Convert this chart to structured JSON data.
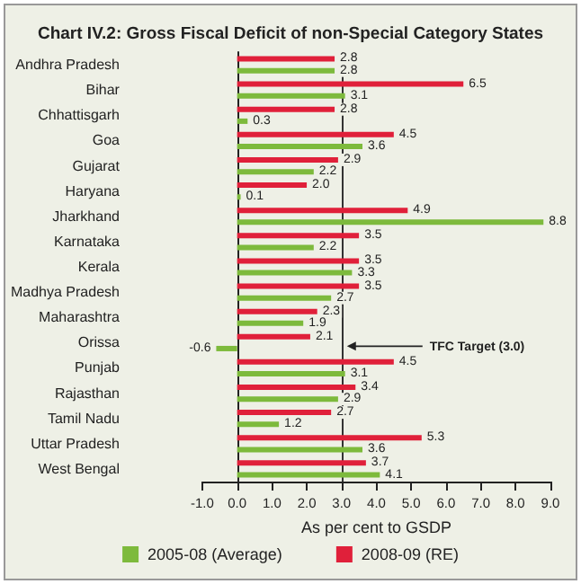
{
  "chart_data": {
    "type": "bar",
    "orientation": "horizontal",
    "title": "Chart IV.2: Gross Fiscal Deficit of non-Special Category States",
    "xlabel": "As per cent to GSDP",
    "categories": [
      "Andhra Pradesh",
      "Bihar",
      "Chhattisgarh",
      "Goa",
      "Gujarat",
      "Haryana",
      "Jharkhand",
      "Karnataka",
      "Kerala",
      "Madhya Pradesh",
      "Maharashtra",
      "Orissa",
      "Punjab",
      "Rajasthan",
      "Tamil Nadu",
      "Uttar Pradesh",
      "West Bengal"
    ],
    "series": [
      {
        "name": "2008-09 (RE)",
        "color": "#e0203a",
        "values": [
          2.8,
          6.5,
          2.8,
          4.5,
          2.9,
          2.0,
          4.9,
          3.5,
          3.5,
          3.5,
          2.3,
          2.1,
          4.5,
          3.4,
          2.7,
          5.3,
          3.7
        ],
        "value_labels": [
          "2.8",
          "6.5",
          "2.8",
          "4.5",
          "2.9",
          "2.0",
          "4.9",
          "3.5",
          "3.5",
          "3.5",
          "2.3",
          "2.1",
          "4.5",
          "3.4",
          "2.7",
          "5.3",
          "3.7"
        ]
      },
      {
        "name": "2005-08 (Average)",
        "color": "#7dba3c",
        "values": [
          2.8,
          3.1,
          0.3,
          3.6,
          2.2,
          0.1,
          8.8,
          2.2,
          3.3,
          2.7,
          1.9,
          -0.6,
          3.1,
          2.9,
          1.2,
          3.6,
          4.1
        ],
        "value_labels": [
          "2.8",
          "3.1",
          "0.3",
          "3.6",
          "2.2",
          "0.1",
          "8.8",
          "2.2",
          "3.3",
          "2.7",
          "1.9",
          "-0.6",
          "3.1",
          "2.9",
          "1.2",
          "3.6",
          "4.1"
        ]
      }
    ],
    "xlim": [
      -1,
      9
    ],
    "xticks": [
      {
        "value": -1,
        "label": "-1.0"
      },
      {
        "value": 0,
        "label": "0.0"
      },
      {
        "value": 1,
        "label": "1.0"
      },
      {
        "value": 2,
        "label": "2.0"
      },
      {
        "value": 3,
        "label": "3.0"
      },
      {
        "value": 4,
        "label": "4.0"
      },
      {
        "value": 5,
        "label": "5.0"
      },
      {
        "value": 6,
        "label": "6.0"
      },
      {
        "value": 7,
        "label": "7.0"
      },
      {
        "value": 8,
        "label": "8.0"
      },
      {
        "value": 9,
        "label": "9.0"
      }
    ],
    "ref_lines": [
      {
        "axis": "x",
        "value": 3,
        "label": "TFC Target (3.0)",
        "color": "#333333"
      }
    ],
    "legend": "bottom",
    "grid": false
  }
}
